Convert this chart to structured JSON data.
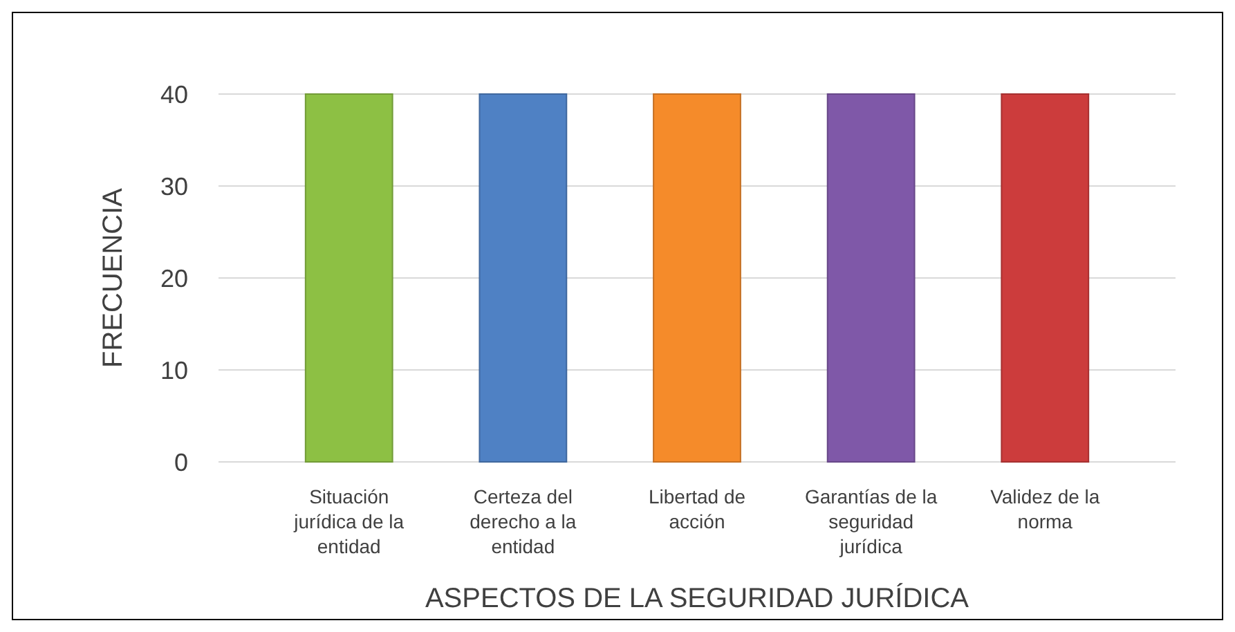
{
  "chart_data": {
    "type": "bar",
    "xlabel": "ASPECTOS DE LA SEGURIDAD JURÍDICA",
    "ylabel": "FRECUENCIA",
    "categories": [
      "Situación jurídica de la entidad",
      "Certeza del derecho a la entidad",
      "Libertad de acción",
      "Garantías de la seguridad jurídica",
      "Validez de la norma"
    ],
    "values": [
      40,
      40,
      40,
      40,
      40
    ],
    "colors": [
      "#8dc044",
      "#4f81c4",
      "#f58b2a",
      "#7f58a8",
      "#cc3c3c"
    ],
    "ylim": [
      0,
      40
    ],
    "yticks": [
      0,
      10,
      20,
      30,
      40
    ],
    "grid": "y"
  }
}
